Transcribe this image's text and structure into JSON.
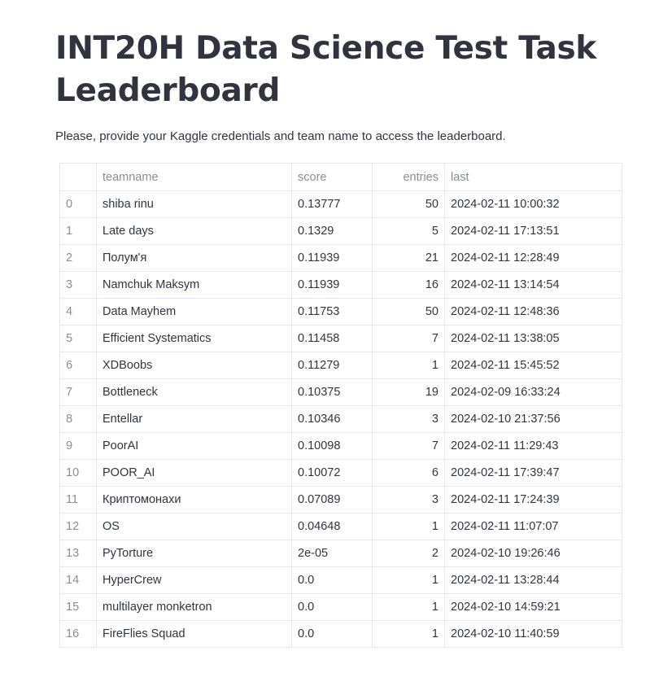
{
  "page": {
    "title": "INT20H Data Science Test Task Leaderboard",
    "subtitle": "Please, provide your Kaggle credentials and team name to access the leaderboard."
  },
  "table": {
    "columns": [
      "",
      "teamname",
      "score",
      "entries",
      "last"
    ],
    "rows": [
      {
        "index": "0",
        "teamname": "shiba rinu",
        "score": "0.13777",
        "entries": "50",
        "last": "2024-02-11 10:00:32"
      },
      {
        "index": "1",
        "teamname": "Late days",
        "score": "0.1329",
        "entries": "5",
        "last": "2024-02-11 17:13:51"
      },
      {
        "index": "2",
        "teamname": "Полум'я",
        "score": "0.11939",
        "entries": "21",
        "last": "2024-02-11 12:28:49"
      },
      {
        "index": "3",
        "teamname": "Namchuk Maksym",
        "score": "0.11939",
        "entries": "16",
        "last": "2024-02-11 13:14:54"
      },
      {
        "index": "4",
        "teamname": "Data Mayhem",
        "score": "0.11753",
        "entries": "50",
        "last": "2024-02-11 12:48:36"
      },
      {
        "index": "5",
        "teamname": "Efficient Systematics",
        "score": "0.11458",
        "entries": "7",
        "last": "2024-02-11 13:38:05"
      },
      {
        "index": "6",
        "teamname": "XDBoobs",
        "score": "0.11279",
        "entries": "1",
        "last": "2024-02-11 15:45:52"
      },
      {
        "index": "7",
        "teamname": "Bottleneck",
        "score": "0.10375",
        "entries": "19",
        "last": "2024-02-09 16:33:24"
      },
      {
        "index": "8",
        "teamname": "Entellar",
        "score": "0.10346",
        "entries": "3",
        "last": "2024-02-10 21:37:56"
      },
      {
        "index": "9",
        "teamname": "PoorAI",
        "score": "0.10098",
        "entries": "7",
        "last": "2024-02-11 11:29:43"
      },
      {
        "index": "10",
        "teamname": "POOR_AI",
        "score": "0.10072",
        "entries": "6",
        "last": "2024-02-11 17:39:47"
      },
      {
        "index": "11",
        "teamname": "Криптомонахи",
        "score": "0.07089",
        "entries": "3",
        "last": "2024-02-11 17:24:39"
      },
      {
        "index": "12",
        "teamname": "OS",
        "score": "0.04648",
        "entries": "1",
        "last": "2024-02-11 11:07:07"
      },
      {
        "index": "13",
        "teamname": "PyTorture",
        "score": "2e-05",
        "entries": "2",
        "last": "2024-02-10 19:26:46"
      },
      {
        "index": "14",
        "teamname": "HyperCrew",
        "score": "0.0",
        "entries": "1",
        "last": "2024-02-11 13:28:44"
      },
      {
        "index": "15",
        "teamname": "multilayer monketron",
        "score": "0.0",
        "entries": "1",
        "last": "2024-02-10 14:59:21"
      },
      {
        "index": "16",
        "teamname": "FireFlies Squad",
        "score": "0.0",
        "entries": "1",
        "last": "2024-02-10 11:40:59"
      }
    ]
  }
}
